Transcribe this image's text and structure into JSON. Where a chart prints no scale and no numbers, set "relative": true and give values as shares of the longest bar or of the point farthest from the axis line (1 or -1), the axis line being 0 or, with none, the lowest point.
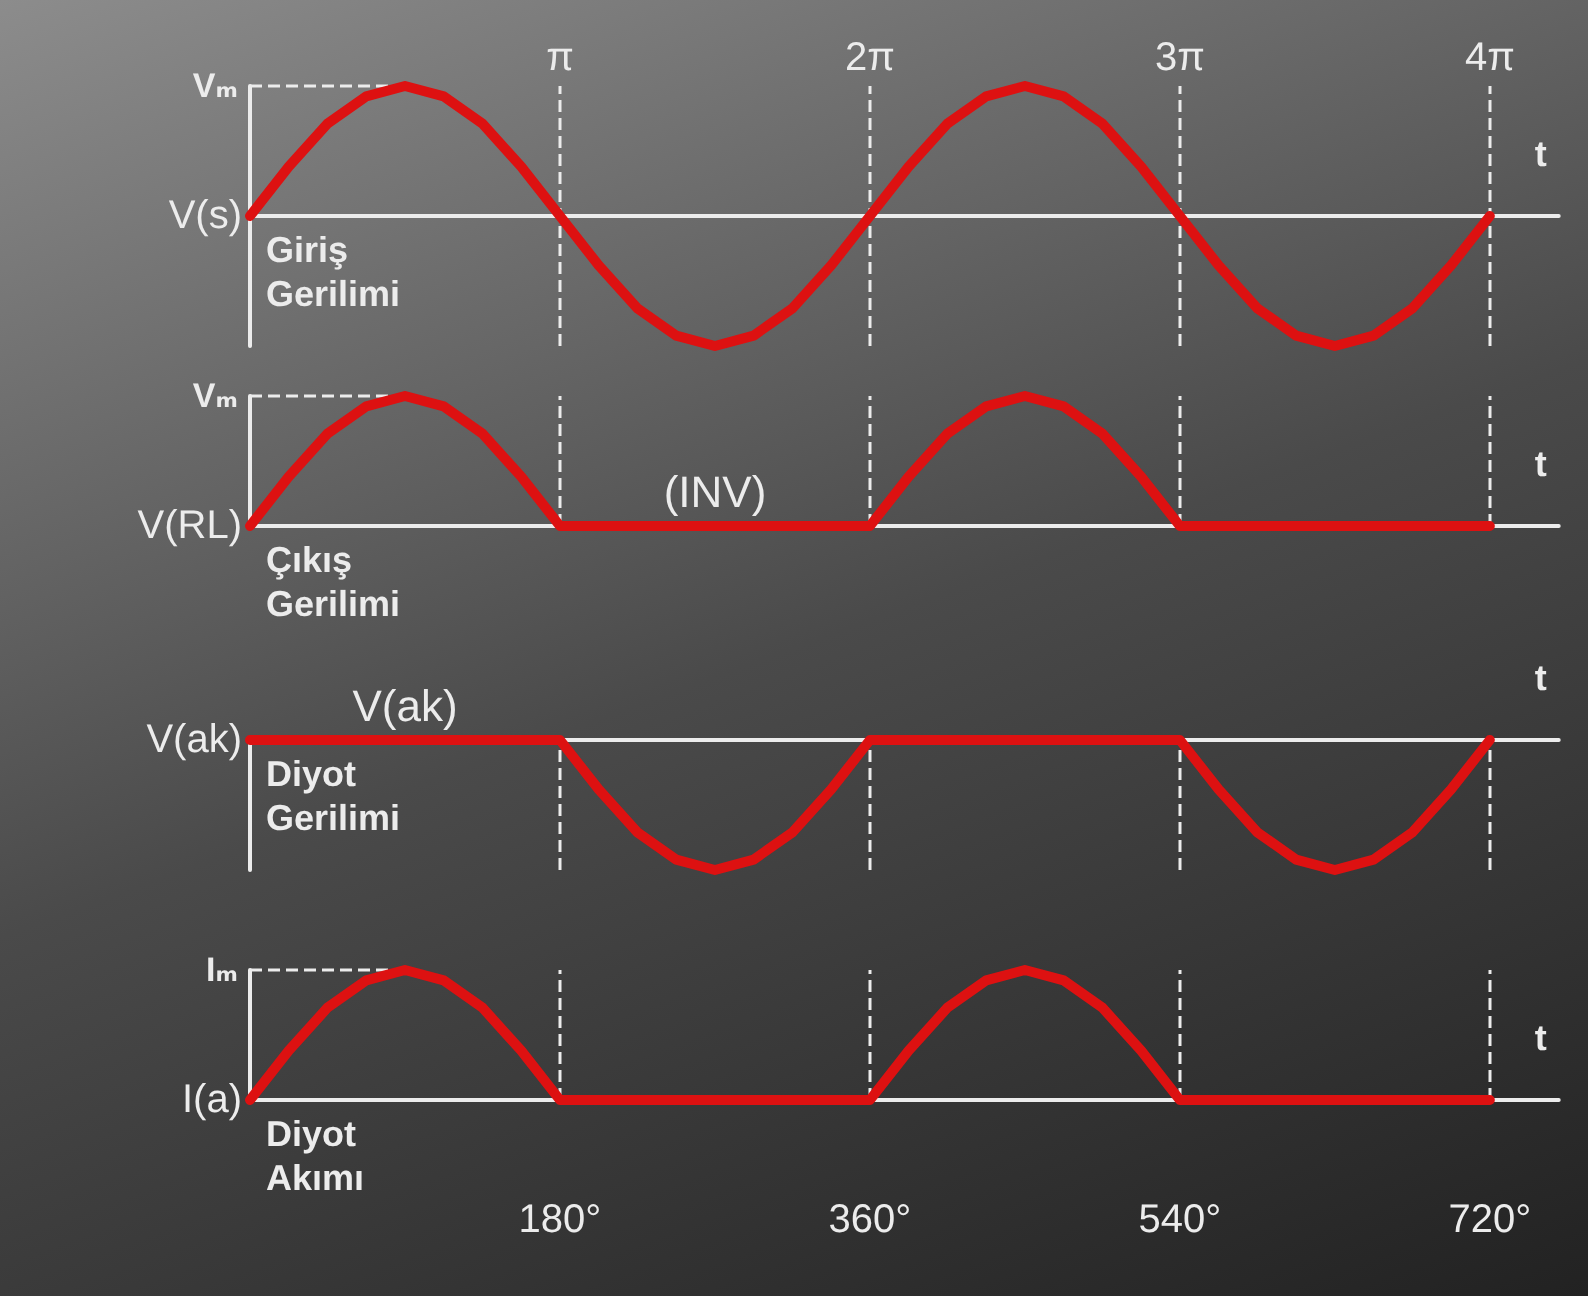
{
  "chart_data": [
    {
      "type": "line",
      "xlabel": "t",
      "ylabel": "V(s)",
      "relative": true,
      "tick_labels": false,
      "x": [
        0,
        22.5,
        45,
        67.5,
        90,
        112.5,
        135,
        157.5,
        180,
        202.5,
        225,
        247.5,
        270,
        292.5,
        315,
        337.5,
        360,
        382.5,
        405,
        427.5,
        450,
        472.5,
        495,
        517.5,
        540,
        562.5,
        585,
        607.5,
        630,
        652.5,
        675,
        697.5,
        720
      ],
      "series": [
        {
          "color": "#dd1111",
          "values": [
            0,
            0.38,
            0.71,
            0.92,
            1,
            0.92,
            0.71,
            0.38,
            0,
            -0.38,
            -0.71,
            -0.92,
            -1,
            -0.92,
            -0.71,
            -0.38,
            0,
            0.38,
            0.71,
            0.92,
            1,
            0.92,
            0.71,
            0.38,
            0,
            -0.38,
            -0.71,
            -0.92,
            -1,
            -0.92,
            -0.71,
            -0.38,
            0
          ]
        }
      ],
      "xlim": [
        0,
        760
      ],
      "ref_lines": [
        {
          "axis": "x",
          "value": 180,
          "label": "π",
          "line_style": "dashed"
        },
        {
          "axis": "x",
          "value": 360,
          "label": "2π",
          "line_style": "dashed"
        },
        {
          "axis": "x",
          "value": 540,
          "label": "3π",
          "line_style": "dashed"
        },
        {
          "axis": "x",
          "value": 720,
          "label": "4π",
          "line_style": "dashed"
        },
        {
          "axis": "y",
          "value": 1,
          "label": "Vₘ",
          "line_style": "dashed"
        }
      ],
      "annotations": [
        "Giriş Gerilimi"
      ],
      "grid": false,
      "marker": "none",
      "line_style": "solid"
    },
    {
      "type": "line",
      "xlabel": "t",
      "ylabel": "V(RL)",
      "relative": true,
      "tick_labels": false,
      "x": [
        0,
        22.5,
        45,
        67.5,
        90,
        112.5,
        135,
        157.5,
        180,
        202.5,
        225,
        247.5,
        270,
        292.5,
        315,
        337.5,
        360,
        382.5,
        405,
        427.5,
        450,
        472.5,
        495,
        517.5,
        540,
        562.5,
        585,
        607.5,
        630,
        652.5,
        675,
        697.5,
        720
      ],
      "series": [
        {
          "color": "#dd1111",
          "values": [
            0,
            0.38,
            0.71,
            0.92,
            1,
            0.92,
            0.71,
            0.38,
            0,
            0,
            0,
            0,
            0,
            0,
            0,
            0,
            0,
            0.38,
            0.71,
            0.92,
            1,
            0.92,
            0.71,
            0.38,
            0,
            0,
            0,
            0,
            0,
            0,
            0,
            0,
            0
          ]
        }
      ],
      "xlim": [
        0,
        760
      ],
      "ref_lines": [
        {
          "axis": "x",
          "value": 180,
          "line_style": "dashed"
        },
        {
          "axis": "x",
          "value": 360,
          "line_style": "dashed"
        },
        {
          "axis": "x",
          "value": 540,
          "line_style": "dashed"
        },
        {
          "axis": "x",
          "value": 720,
          "line_style": "dashed"
        },
        {
          "axis": "y",
          "value": 1,
          "label": "Vₘ",
          "line_style": "dashed"
        }
      ],
      "annotations": [
        {
          "text": "(INV)",
          "x": 270,
          "y": 0
        },
        "Çıkış Gerilimi"
      ],
      "grid": false,
      "marker": "none",
      "line_style": "solid"
    },
    {
      "type": "line",
      "xlabel": "t",
      "ylabel": "V(ak)",
      "relative": true,
      "tick_labels": false,
      "x": [
        0,
        22.5,
        45,
        67.5,
        90,
        112.5,
        135,
        157.5,
        180,
        202.5,
        225,
        247.5,
        270,
        292.5,
        315,
        337.5,
        360,
        382.5,
        405,
        427.5,
        450,
        472.5,
        495,
        517.5,
        540,
        562.5,
        585,
        607.5,
        630,
        652.5,
        675,
        697.5,
        720
      ],
      "series": [
        {
          "color": "#dd1111",
          "values": [
            0,
            0,
            0,
            0,
            0,
            0,
            0,
            0,
            0,
            -0.38,
            -0.71,
            -0.92,
            -1,
            -0.92,
            -0.71,
            -0.38,
            0,
            0,
            0,
            0,
            0,
            0,
            0,
            0,
            0,
            -0.38,
            -0.71,
            -0.92,
            -1,
            -0.92,
            -0.71,
            -0.38,
            0
          ]
        }
      ],
      "xlim": [
        0,
        760
      ],
      "ref_lines": [
        {
          "axis": "x",
          "value": 180,
          "line_style": "dashed"
        },
        {
          "axis": "x",
          "value": 360,
          "line_style": "dashed"
        },
        {
          "axis": "x",
          "value": 540,
          "line_style": "dashed"
        },
        {
          "axis": "x",
          "value": 720,
          "line_style": "dashed"
        }
      ],
      "annotations": [
        {
          "text": "V(ak)",
          "x": 90,
          "y": 0
        },
        "Diyot Gerilimi"
      ],
      "grid": false,
      "marker": "none",
      "line_style": "solid"
    },
    {
      "type": "line",
      "xlabel": "t",
      "ylabel": "I(a)",
      "relative": true,
      "tick_labels": "x",
      "x": [
        0,
        22.5,
        45,
        67.5,
        90,
        112.5,
        135,
        157.5,
        180,
        202.5,
        225,
        247.5,
        270,
        292.5,
        315,
        337.5,
        360,
        382.5,
        405,
        427.5,
        450,
        472.5,
        495,
        517.5,
        540,
        562.5,
        585,
        607.5,
        630,
        652.5,
        675,
        697.5,
        720
      ],
      "series": [
        {
          "color": "#dd1111",
          "values": [
            0,
            0.38,
            0.71,
            0.92,
            1,
            0.92,
            0.71,
            0.38,
            0,
            0,
            0,
            0,
            0,
            0,
            0,
            0,
            0,
            0.38,
            0.71,
            0.92,
            1,
            0.92,
            0.71,
            0.38,
            0,
            0,
            0,
            0,
            0,
            0,
            0,
            0,
            0
          ]
        }
      ],
      "xlim": [
        0,
        760
      ],
      "xticks": [
        {
          "value": 180,
          "label": "180°"
        },
        {
          "value": 360,
          "label": "360°"
        },
        {
          "value": 540,
          "label": "540°"
        },
        {
          "value": 720,
          "label": "720°"
        }
      ],
      "ref_lines": [
        {
          "axis": "x",
          "value": 180,
          "line_style": "dashed"
        },
        {
          "axis": "x",
          "value": 360,
          "line_style": "dashed"
        },
        {
          "axis": "x",
          "value": 540,
          "line_style": "dashed"
        },
        {
          "axis": "x",
          "value": 720,
          "line_style": "dashed"
        },
        {
          "axis": "y",
          "value": 1,
          "label": "Iₘ",
          "line_style": "dashed"
        }
      ],
      "annotations": [
        "Diyot Akımı"
      ],
      "grid": false,
      "marker": "none",
      "line_style": "solid"
    }
  ]
}
